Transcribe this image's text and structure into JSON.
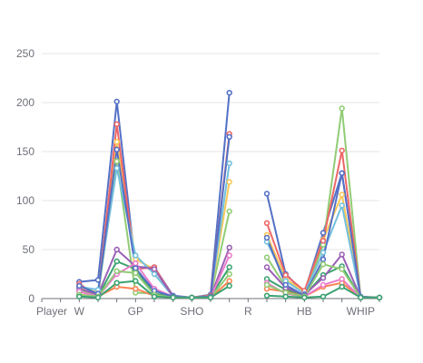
{
  "chart_data": {
    "type": "line",
    "title": "",
    "xlabel": "",
    "ylabel": "",
    "ylim": [
      0,
      250
    ],
    "yticks": [
      0,
      50,
      100,
      150,
      200,
      250
    ],
    "grid": true,
    "legend": "none",
    "categories": [
      "Player",
      "",
      "W",
      "",
      "",
      "GP",
      "",
      "",
      "SHO",
      "",
      "",
      "R",
      "",
      "",
      "HB",
      "",
      "",
      "WHIP",
      ""
    ],
    "series": [
      {
        "color": "#5470c6",
        "values": [
          null,
          null,
          17,
          19,
          201,
          32,
          32,
          3,
          1,
          4,
          210,
          null,
          107,
          25,
          6,
          67,
          128,
          2,
          1
        ]
      },
      {
        "color": "#91cc75",
        "values": [
          null,
          null,
          8,
          4,
          140,
          6,
          5,
          2,
          1,
          2,
          89,
          null,
          42,
          12,
          3,
          55,
          194,
          1,
          1
        ]
      },
      {
        "color": "#fac858",
        "values": [
          null,
          null,
          12,
          6,
          160,
          40,
          30,
          2,
          1,
          3,
          119,
          null,
          65,
          20,
          7,
          60,
          106,
          1,
          1
        ]
      },
      {
        "color": "#ee6666",
        "values": [
          null,
          null,
          15,
          3,
          178,
          30,
          32,
          2,
          1,
          3,
          168,
          null,
          77,
          24,
          8,
          59,
          151,
          1,
          1
        ]
      },
      {
        "color": "#73c0de",
        "values": [
          null,
          null,
          12,
          9,
          133,
          44,
          25,
          2,
          1,
          2,
          138,
          null,
          58,
          18,
          5,
          47,
          95,
          1,
          1
        ]
      },
      {
        "color": "#3ba272",
        "values": [
          null,
          null,
          3,
          2,
          38,
          30,
          5,
          2,
          1,
          2,
          32,
          null,
          20,
          9,
          3,
          24,
          33,
          1,
          1
        ]
      },
      {
        "color": "#fc8452",
        "values": [
          null,
          null,
          4,
          2,
          12,
          10,
          3,
          1,
          1,
          1,
          18,
          null,
          10,
          7,
          2,
          12,
          16,
          1,
          1
        ]
      },
      {
        "color": "#9a60b4",
        "values": [
          null,
          null,
          10,
          4,
          50,
          33,
          30,
          2,
          1,
          2,
          52,
          null,
          32,
          11,
          4,
          21,
          45,
          1,
          1
        ]
      },
      {
        "color": "#ea7ccc",
        "values": [
          null,
          null,
          7,
          2,
          25,
          36,
          10,
          2,
          1,
          1,
          44,
          null,
          16,
          5,
          2,
          14,
          20,
          1,
          1
        ]
      },
      {
        "color": "#5470c6",
        "values": [
          null,
          null,
          13,
          5,
          152,
          31,
          8,
          2,
          1,
          2,
          165,
          null,
          62,
          14,
          3,
          40,
          128,
          1,
          1
        ]
      },
      {
        "color": "#91cc75",
        "values": [
          null,
          null,
          4,
          2,
          28,
          26,
          4,
          1,
          1,
          1,
          25,
          null,
          14,
          6,
          2,
          35,
          30,
          1,
          1
        ]
      },
      {
        "color": "#3ba272",
        "values": [
          null,
          null,
          2,
          1,
          16,
          18,
          2,
          1,
          1,
          1,
          13,
          null,
          3,
          2,
          1,
          2,
          12,
          1,
          1
        ]
      }
    ]
  }
}
